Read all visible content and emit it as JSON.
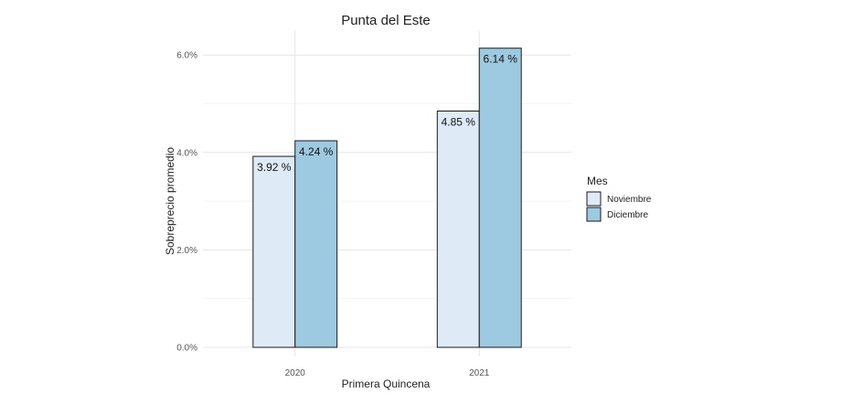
{
  "chart_data": {
    "type": "bar",
    "title": "Punta del Este",
    "xlabel": "Primera Quincena",
    "ylabel": "Sobreprecio promedio",
    "categories": [
      "2020",
      "2021"
    ],
    "series": [
      {
        "name": "Noviembre",
        "values": [
          3.92,
          4.85
        ],
        "labels": [
          "3.92 %",
          "4.85 %"
        ],
        "color": "#deebf7"
      },
      {
        "name": "Diciembre",
        "values": [
          4.24,
          6.14
        ],
        "labels": [
          "4.24 %",
          "6.14 %"
        ],
        "color": "#9ecae1"
      }
    ],
    "yticks": [
      0,
      2,
      4,
      6
    ],
    "ytick_labels": [
      "0.0%",
      "2.0%",
      "4.0%",
      "6.0%"
    ],
    "ylim": [
      0,
      6.25
    ],
    "grid": true,
    "legend": {
      "title": "Mes",
      "position": "right"
    }
  }
}
